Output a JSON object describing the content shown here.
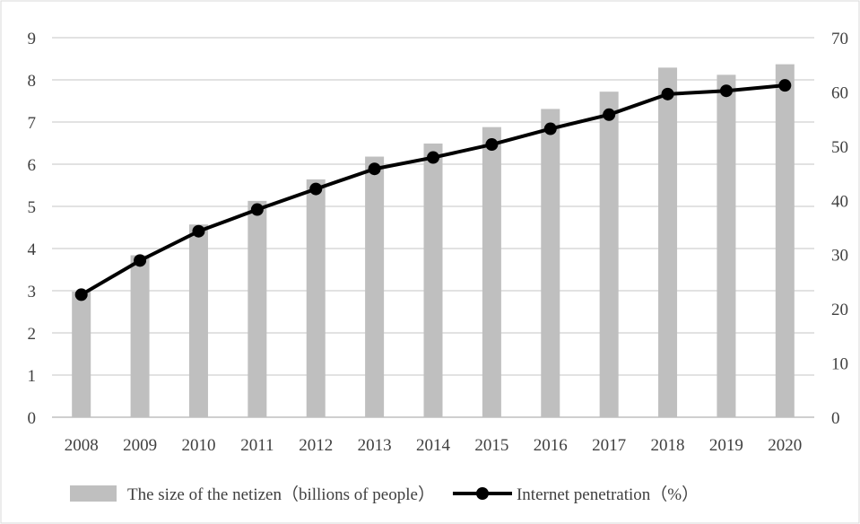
{
  "chart_data": {
    "type": "bar",
    "categories": [
      "2008",
      "2009",
      "2010",
      "2011",
      "2012",
      "2013",
      "2014",
      "2015",
      "2016",
      "2017",
      "2018",
      "2019",
      "2020"
    ],
    "series": [
      {
        "name": "The size of the netizen（billions of people）",
        "type": "bar",
        "axis": "left",
        "color": "#bfbfbf",
        "values": [
          2.98,
          3.84,
          4.57,
          5.13,
          5.64,
          6.18,
          6.49,
          6.88,
          7.31,
          7.72,
          8.29,
          8.12,
          8.37
        ]
      },
      {
        "name": "Internet penetration（%）",
        "type": "line",
        "axis": "right",
        "color": "#000000",
        "values": [
          22.6,
          28.9,
          34.3,
          38.3,
          42.1,
          45.8,
          47.9,
          50.3,
          53.2,
          55.8,
          59.6,
          60.2,
          61.2
        ]
      }
    ],
    "y_left": {
      "min": 0,
      "max": 9,
      "step": 1,
      "ticks": [
        "0",
        "1",
        "2",
        "3",
        "4",
        "5",
        "6",
        "7",
        "8",
        "9"
      ]
    },
    "y_right": {
      "min": 0,
      "max": 70,
      "step": 10,
      "ticks": [
        "0",
        "10",
        "20",
        "30",
        "40",
        "50",
        "60",
        "70"
      ]
    },
    "grid": true,
    "legend_position": "bottom",
    "title": "",
    "xlabel": "",
    "ylabel": ""
  }
}
